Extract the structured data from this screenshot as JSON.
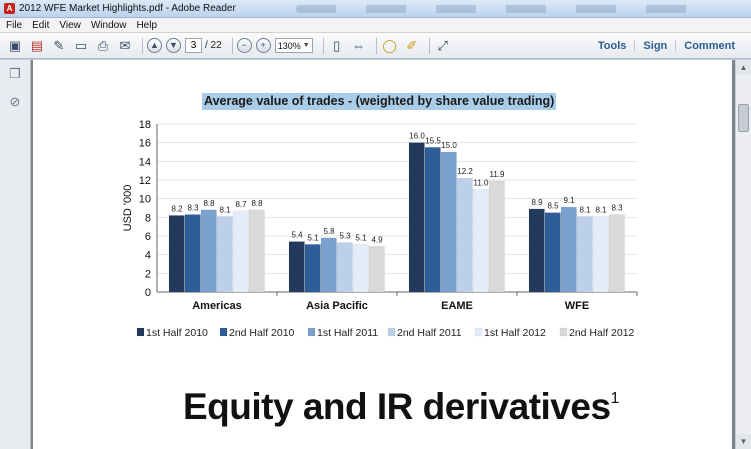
{
  "window": {
    "title": "2012 WFE Market Highlights.pdf - Adobe Reader"
  },
  "menu": [
    "File",
    "Edit",
    "View",
    "Window",
    "Help"
  ],
  "toolbar": {
    "page_current": "3",
    "page_total": "/ 22",
    "zoom": "130%",
    "right_links": [
      "Tools",
      "Sign",
      "Comment"
    ]
  },
  "document": {
    "heading": "Equity and IR derivatives",
    "heading_footnote": "1"
  },
  "chart_data": {
    "type": "bar",
    "title": "Average value of trades - (weighted by share value trading)",
    "ylabel": "USD '000",
    "xlabel": "",
    "ylim": [
      0,
      18
    ],
    "yticks": [
      "0",
      "2",
      "4",
      "6",
      "8",
      "10",
      "12",
      "14",
      "16",
      "18"
    ],
    "grid": true,
    "legend": "bottom",
    "categories": [
      "Americas",
      "Asia Pacific",
      "EAME",
      "WFE"
    ],
    "series": [
      {
        "name": "1st Half 2010",
        "color": "#233a5e",
        "values": [
          8.2,
          5.4,
          16.0,
          8.9
        ],
        "labels": [
          "8.2",
          "5.4",
          "16.0",
          "8.9"
        ]
      },
      {
        "name": "2nd Half 2010",
        "color": "#2f5d97",
        "values": [
          8.3,
          5.1,
          15.5,
          8.5
        ],
        "labels": [
          "8.3",
          "5.1",
          "15.5",
          "8.5"
        ]
      },
      {
        "name": "1st Half 2011",
        "color": "#7ba1cf",
        "values": [
          8.8,
          5.8,
          15.0,
          9.1
        ],
        "labels": [
          "8.8",
          "5.8",
          "15.0",
          "9.1"
        ]
      },
      {
        "name": "2nd Half 2011",
        "color": "#bcd0ea",
        "values": [
          8.1,
          5.3,
          12.2,
          8.1
        ],
        "labels": [
          "8.1",
          "5.3",
          "12.2",
          "8.1"
        ]
      },
      {
        "name": "1st Half 2012",
        "color": "#e4ecf7",
        "values": [
          8.7,
          5.1,
          11.0,
          8.1
        ],
        "labels": [
          "8.7",
          "5.1",
          "11.0",
          "8.1"
        ]
      },
      {
        "name": "2nd Half 2012",
        "color": "#d9d9d9",
        "values": [
          8.8,
          4.9,
          11.9,
          8.3
        ],
        "labels": [
          "8.8",
          "4.9",
          "11.9",
          "8.3"
        ]
      }
    ]
  }
}
